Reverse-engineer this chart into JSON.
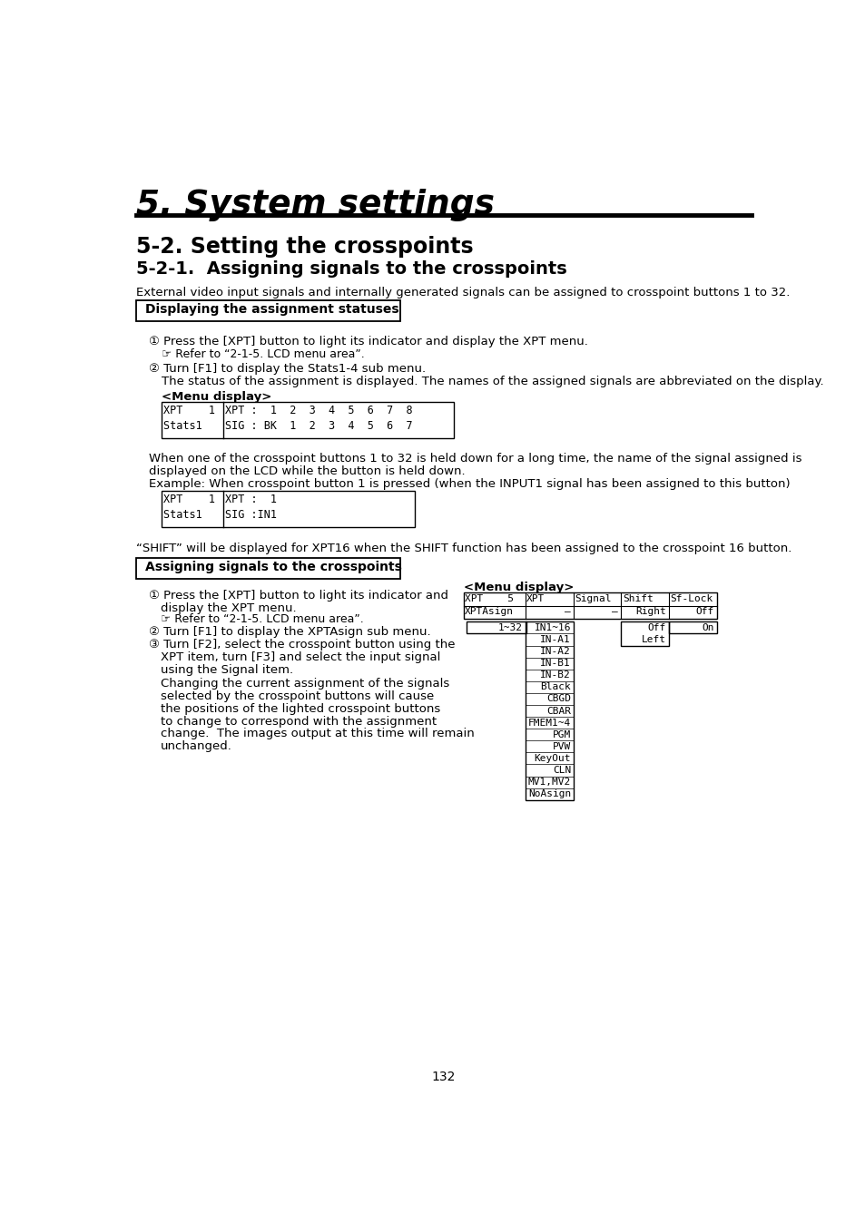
{
  "title_main": "5. System settings",
  "title_sub1": "5-2. Setting the crosspoints",
  "title_sub2": "5-2-1.  Assigning signals to the crosspoints",
  "intro_text": "External video input signals and internally generated signals can be assigned to crosspoint buttons 1 to 32.",
  "section1_header": "Displaying the assignment statuses",
  "step1_1": "① Press the [XPT] button to light its indicator and display the XPT menu.",
  "step1_1b": "☞ Refer to “2-1-5. LCD menu area”.",
  "step1_2": "② Turn [F1] to display the Stats1-4 sub menu.",
  "step1_2b": "The status of the assignment is displayed. The names of the assigned signals are abbreviated on the display.",
  "menu_display_label1": "<Menu display>",
  "menu1_line1": "XPT    1|XPT :  1  2  3  4  5  6  7  8",
  "menu1_line2": "Stats1  |SIG : BK  1  2  3  4  5  6  7",
  "para1a": "When one of the crosspoint buttons 1 to 32 is held down for a long time, the name of the signal assigned is",
  "para1b": "displayed on the LCD while the button is held down.",
  "para1c": "Example: When crosspoint button 1 is pressed (when the INPUT1 signal has been assigned to this button)",
  "menu2_line1": "XPT    1|XPT :  1",
  "menu2_line2": "Stats1  |SIG :IN1",
  "shift_note": "“SHIFT” will be displayed for XPT16 when the SHIFT function has been assigned to the crosspoint 16 button.",
  "section2_header": "Assigning signals to the crosspoints",
  "step2_1a": "① Press the [XPT] button to light its indicator and",
  "step2_1b_cont": "display the XPT menu.",
  "step2_1c": "☞ Refer to “2-1-5. LCD menu area”.",
  "step2_2": "② Turn [F1] to display the XPTAsign sub menu.",
  "step2_3a": "③ Turn [F2], select the crosspoint button using the",
  "step2_3b": "XPT item, turn [F3] and select the input signal",
  "step2_3c": "using the Signal item.",
  "step2_3d": "Changing the current assignment of the signals",
  "step2_3e": "selected by the crosspoint buttons will cause",
  "step2_3f": "the positions of the lighted crosspoint buttons",
  "step2_3g": "to change to correspond with the assignment",
  "step2_3h": "change.  The images output at this time will remain",
  "step2_3i": "unchanged.",
  "menu_display_label2": "<Menu display>",
  "menu3_signals": [
    "IN1~16",
    "IN-A1",
    "IN-A2",
    "IN-B1",
    "IN-B2",
    "Black",
    "CBGD",
    "CBAR",
    "FMEM1~4",
    "PGM",
    "PVW",
    "KeyOut",
    "CLN",
    "MV1,MV2",
    "NoAsign"
  ],
  "page_number": "132",
  "background_color": "#ffffff"
}
